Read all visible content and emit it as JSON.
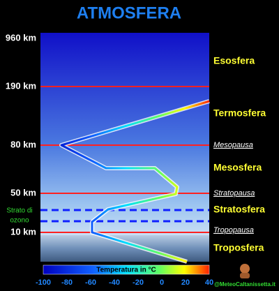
{
  "title": "ATMOSFERA",
  "altitudes": [
    "960 km",
    "190 km",
    "80 km",
    "50 km",
    "10 km"
  ],
  "ozone_label": [
    "Strato di",
    "ozono"
  ],
  "layers": [
    "Esosfera",
    "Termosfera",
    "Mesosfera",
    "Stratosfera",
    "Troposfera"
  ],
  "boundaries": [
    "Mesopausa",
    "Stratopausa",
    "Tropopausa"
  ],
  "colorbar": {
    "label": "Temperatura in °C",
    "ticks": [
      "-100",
      "-80",
      "-60",
      "-40",
      "-20",
      "0",
      "20",
      "40"
    ]
  },
  "watermark": "@MeteoCaltanissetta.it"
}
